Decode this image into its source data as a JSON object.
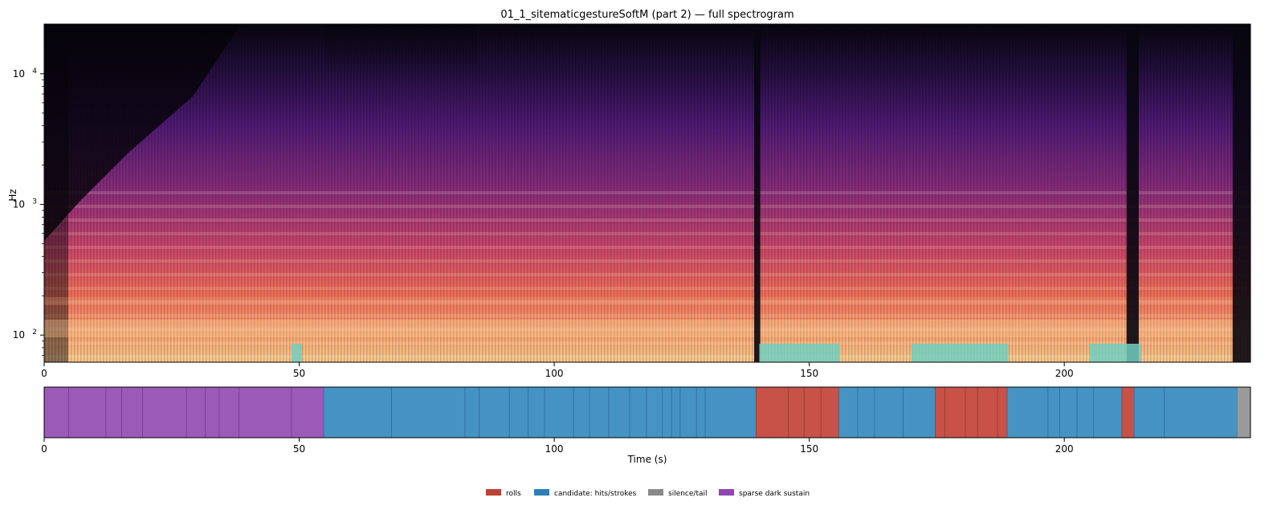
{
  "chart_data": [
    {
      "type": "heatmap",
      "title": "01_1_sitematicgestureSoftM (part 2) — full spectrogram",
      "xlabel": "",
      "ylabel": "Hz",
      "xlim": [
        0,
        236.5
      ],
      "ylim_hz": [
        62,
        24000
      ],
      "y_scale": "log",
      "colormap": "magma",
      "x_ticks": [
        0,
        50,
        100,
        150,
        200
      ],
      "y_ticks": [
        {
          "value": 100,
          "base": "10",
          "exp": "2"
        },
        {
          "value": 1000,
          "base": "10",
          "exp": "3"
        },
        {
          "value": 10000,
          "base": "10",
          "exp": "4"
        }
      ],
      "quiet_gaps_s": [
        [
          139.2,
          140.4
        ],
        [
          212.2,
          214.6
        ],
        [
          233.0,
          236.5
        ]
      ],
      "teal_bands_s": [
        [
          48.5,
          50.5
        ],
        [
          140.2,
          156.0
        ],
        [
          170.0,
          189.0
        ],
        [
          205.0,
          215.0
        ]
      ]
    },
    {
      "type": "bar",
      "xlabel": "Time (s)",
      "xlim": [
        0,
        236.5
      ],
      "x_ticks": [
        0,
        50,
        100,
        150,
        200
      ],
      "segments": [
        {
          "start": 0,
          "end": 4.8,
          "label": "sparse dark sustain"
        },
        {
          "start": 4.8,
          "end": 12.1,
          "label": "sparse dark sustain"
        },
        {
          "start": 12.1,
          "end": 15.2,
          "label": "sparse dark sustain"
        },
        {
          "start": 15.2,
          "end": 19.3,
          "label": "sparse dark sustain"
        },
        {
          "start": 19.3,
          "end": 27.9,
          "label": "sparse dark sustain"
        },
        {
          "start": 27.9,
          "end": 31.6,
          "label": "sparse dark sustain"
        },
        {
          "start": 31.6,
          "end": 34.3,
          "label": "sparse dark sustain"
        },
        {
          "start": 34.3,
          "end": 38.2,
          "label": "sparse dark sustain"
        },
        {
          "start": 38.2,
          "end": 48.5,
          "label": "sparse dark sustain"
        },
        {
          "start": 48.5,
          "end": 54.8,
          "label": "sparse dark sustain"
        },
        {
          "start": 54.8,
          "end": 68.1,
          "label": "candidate: hits/strokes"
        },
        {
          "start": 68.1,
          "end": 82.5,
          "label": "candidate: hits/strokes"
        },
        {
          "start": 82.5,
          "end": 85.3,
          "label": "candidate: hits/strokes"
        },
        {
          "start": 85.3,
          "end": 91.2,
          "label": "candidate: hits/strokes"
        },
        {
          "start": 91.2,
          "end": 94.9,
          "label": "candidate: hits/strokes"
        },
        {
          "start": 94.9,
          "end": 98.1,
          "label": "candidate: hits/strokes"
        },
        {
          "start": 98.1,
          "end": 103.8,
          "label": "candidate: hits/strokes"
        },
        {
          "start": 103.8,
          "end": 106.9,
          "label": "candidate: hits/strokes"
        },
        {
          "start": 106.9,
          "end": 110.7,
          "label": "candidate: hits/strokes"
        },
        {
          "start": 110.7,
          "end": 114.8,
          "label": "candidate: hits/strokes"
        },
        {
          "start": 114.8,
          "end": 118.1,
          "label": "candidate: hits/strokes"
        },
        {
          "start": 118.1,
          "end": 121.2,
          "label": "candidate: hits/strokes"
        },
        {
          "start": 121.2,
          "end": 123.0,
          "label": "candidate: hits/strokes"
        },
        {
          "start": 123.0,
          "end": 124.7,
          "label": "candidate: hits/strokes"
        },
        {
          "start": 124.7,
          "end": 127.9,
          "label": "candidate: hits/strokes"
        },
        {
          "start": 127.9,
          "end": 129.6,
          "label": "candidate: hits/strokes"
        },
        {
          "start": 129.6,
          "end": 139.6,
          "label": "candidate: hits/strokes"
        },
        {
          "start": 139.6,
          "end": 145.9,
          "label": "rolls"
        },
        {
          "start": 145.9,
          "end": 149.0,
          "label": "rolls"
        },
        {
          "start": 149.0,
          "end": 152.3,
          "label": "rolls"
        },
        {
          "start": 152.3,
          "end": 155.8,
          "label": "rolls"
        },
        {
          "start": 155.8,
          "end": 159.5,
          "label": "candidate: hits/strokes"
        },
        {
          "start": 159.5,
          "end": 162.8,
          "label": "candidate: hits/strokes"
        },
        {
          "start": 162.8,
          "end": 168.4,
          "label": "candidate: hits/strokes"
        },
        {
          "start": 168.4,
          "end": 174.7,
          "label": "candidate: hits/strokes"
        },
        {
          "start": 174.7,
          "end": 176.6,
          "label": "rolls"
        },
        {
          "start": 176.6,
          "end": 180.6,
          "label": "rolls"
        },
        {
          "start": 180.6,
          "end": 183.0,
          "label": "rolls"
        },
        {
          "start": 183.0,
          "end": 186.9,
          "label": "rolls"
        },
        {
          "start": 186.9,
          "end": 188.8,
          "label": "rolls"
        },
        {
          "start": 188.8,
          "end": 196.8,
          "label": "candidate: hits/strokes"
        },
        {
          "start": 196.8,
          "end": 199.1,
          "label": "candidate: hits/strokes"
        },
        {
          "start": 199.1,
          "end": 202.5,
          "label": "candidate: hits/strokes"
        },
        {
          "start": 202.5,
          "end": 205.7,
          "label": "candidate: hits/strokes"
        },
        {
          "start": 205.7,
          "end": 211.3,
          "label": "candidate: hits/strokes"
        },
        {
          "start": 211.3,
          "end": 213.7,
          "label": "rolls"
        },
        {
          "start": 213.7,
          "end": 219.6,
          "label": "candidate: hits/strokes"
        },
        {
          "start": 219.6,
          "end": 233.9,
          "label": "candidate: hits/strokes"
        },
        {
          "start": 233.9,
          "end": 236.5,
          "label": "silence/tail"
        }
      ]
    }
  ],
  "legend": [
    {
      "key": "rolls",
      "label": "rolls",
      "color": "#bc4036"
    },
    {
      "key": "hits",
      "label": "candidate: hits/strokes",
      "color": "#2e7fb8"
    },
    {
      "key": "silence",
      "label": "silence/tail",
      "color": "#898989"
    },
    {
      "key": "sustain",
      "label": "sparse dark sustain",
      "color": "#8f46b0"
    }
  ],
  "segment_fill": {
    "rolls": "#c85248",
    "candidate: hits/strokes": "#4593c3",
    "silence/tail": "#9a9a9a",
    "sparse dark sustain": "#9c5ab8"
  }
}
